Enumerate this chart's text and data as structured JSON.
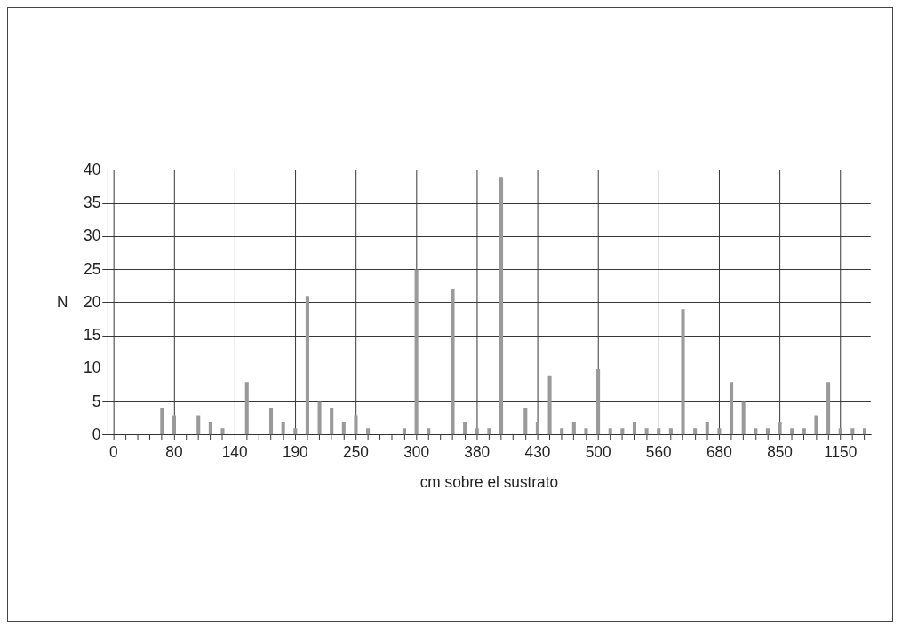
{
  "chart_data": {
    "type": "bar",
    "xlabel": "cm sobre el sustrato",
    "ylabel": "N",
    "categories": [
      "0",
      null,
      null,
      null,
      null,
      "80",
      null,
      null,
      null,
      null,
      "140",
      null,
      null,
      null,
      null,
      "190",
      null,
      null,
      null,
      null,
      "250",
      null,
      null,
      null,
      null,
      "300",
      null,
      null,
      null,
      null,
      "380",
      null,
      null,
      null,
      null,
      "430",
      null,
      null,
      null,
      null,
      "500",
      null,
      null,
      null,
      null,
      "560",
      null,
      null,
      null,
      null,
      "680",
      null,
      null,
      null,
      null,
      "850",
      null,
      null,
      null,
      null,
      "1150",
      null,
      null
    ],
    "values": [
      0,
      0,
      0,
      0,
      4,
      3,
      0,
      3,
      2,
      1,
      0,
      8,
      0,
      4,
      2,
      1,
      21,
      5,
      4,
      2,
      3,
      1,
      0,
      0,
      1,
      25,
      1,
      0,
      22,
      2,
      1,
      1,
      39,
      0,
      4,
      2,
      9,
      1,
      2,
      1,
      10,
      1,
      1,
      2,
      1,
      1,
      1,
      19,
      1,
      2,
      1,
      8,
      5,
      1,
      1,
      2,
      1,
      1,
      3,
      8,
      1,
      1,
      1
    ],
    "color": "#9a9a9a",
    "ylim": [
      0,
      40
    ],
    "yticks": [
      0,
      5,
      10,
      15,
      20,
      25,
      30,
      35,
      40
    ],
    "grid": true,
    "legend": false
  }
}
